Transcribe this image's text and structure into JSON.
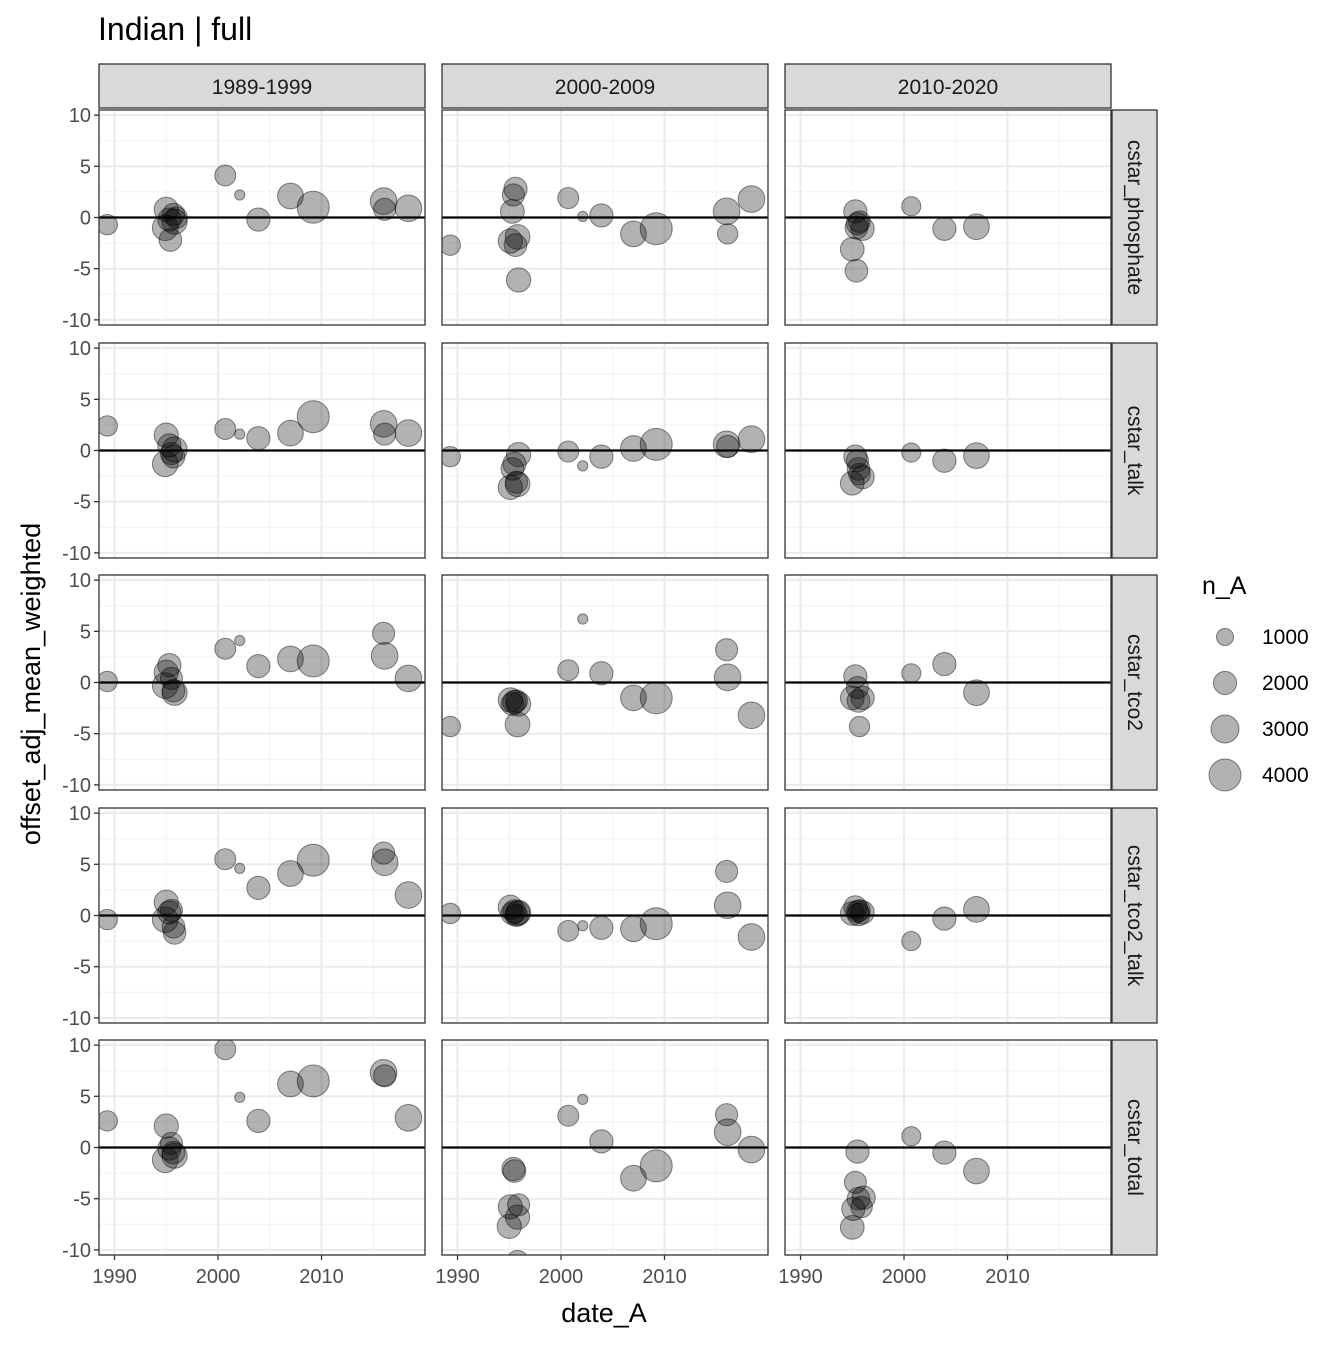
{
  "title": "Indian | full",
  "chart_data": {
    "type": "scatter",
    "title": "Indian | full",
    "xlabel": "date_A",
    "ylabel": "offset_adj_mean_weighted",
    "xlim": [
      1988.5,
      2020
    ],
    "ylim": [
      -10.5,
      10.5
    ],
    "x_ticks": [
      1990,
      2000,
      2010
    ],
    "y_ticks": [
      -10,
      -5,
      0,
      5,
      10
    ],
    "grid": true,
    "hline": 0,
    "facet_cols": [
      "1989-1999",
      "2000-2009",
      "2010-2020"
    ],
    "facet_rows": [
      "cstar_phosphate",
      "cstar_talk",
      "cstar_tco2",
      "cstar_tco2_talk",
      "cstar_total"
    ],
    "point_color": "#000000",
    "point_alpha": 0.3,
    "legend": {
      "title": "n_A",
      "position": "right",
      "sizes": [
        1000,
        2000,
        3000,
        4000
      ]
    },
    "panels": [
      {
        "row": "cstar_phosphate",
        "col": "1989-1999",
        "points": [
          [
            1989.3,
            -0.7,
            1500
          ],
          [
            1995.0,
            0.8,
            2200
          ],
          [
            1994.9,
            -1.0,
            2500
          ],
          [
            1995.3,
            -0.2,
            2000
          ],
          [
            1995.7,
            0.3,
            1800
          ],
          [
            1995.4,
            -2.2,
            1900
          ],
          [
            1995.8,
            -0.4,
            2400
          ],
          [
            1996.0,
            0.0,
            1700
          ],
          [
            2000.7,
            4.1,
            1600
          ],
          [
            2002.1,
            2.2,
            300
          ],
          [
            2003.9,
            -0.2,
            2000
          ],
          [
            2007.0,
            2.1,
            2500
          ],
          [
            2009.2,
            1.0,
            4000
          ],
          [
            2016.0,
            1.6,
            2700
          ],
          [
            2016.1,
            0.8,
            1800
          ],
          [
            2018.4,
            0.9,
            2700
          ]
        ]
      },
      {
        "row": "cstar_phosphate",
        "col": "2000-2009",
        "points": [
          [
            1989.3,
            -2.7,
            1500
          ],
          [
            1995.1,
            -2.3,
            2200
          ],
          [
            1995.4,
            2.2,
            1800
          ],
          [
            1995.6,
            2.8,
            2000
          ],
          [
            1995.3,
            0.6,
            2100
          ],
          [
            1995.8,
            -1.9,
            2300
          ],
          [
            1995.6,
            -2.7,
            1900
          ],
          [
            1995.9,
            -6.1,
            2200
          ],
          [
            2000.7,
            1.9,
            1600
          ],
          [
            2002.1,
            0.1,
            300
          ],
          [
            2003.9,
            0.2,
            2000
          ],
          [
            2007.0,
            -1.6,
            2500
          ],
          [
            2009.2,
            -1.1,
            4000
          ],
          [
            2016.0,
            0.6,
            2700
          ],
          [
            2016.1,
            -1.6,
            1500
          ],
          [
            2018.4,
            1.8,
            2700
          ]
        ]
      },
      {
        "row": "cstar_phosphate",
        "col": "2010-2020",
        "points": [
          [
            1995.0,
            -3.1,
            2100
          ],
          [
            1995.3,
            0.6,
            2000
          ],
          [
            1995.5,
            -0.6,
            1800
          ],
          [
            1995.4,
            -1.0,
            1900
          ],
          [
            1995.7,
            -0.4,
            1700
          ],
          [
            1996.0,
            -1.1,
            2000
          ],
          [
            1995.4,
            -5.2,
            1900
          ],
          [
            2000.7,
            1.1,
            1300
          ],
          [
            2003.9,
            -1.1,
            2000
          ],
          [
            2007.0,
            -0.9,
            2500
          ]
        ]
      },
      {
        "row": "cstar_talk",
        "col": "1989-1999",
        "points": [
          [
            1989.3,
            2.4,
            1500
          ],
          [
            1995.0,
            1.5,
            2200
          ],
          [
            1994.9,
            -1.3,
            2500
          ],
          [
            1995.3,
            0.5,
            2000
          ],
          [
            1995.5,
            -0.3,
            1800
          ],
          [
            1995.7,
            -0.6,
            1900
          ],
          [
            1995.8,
            0.1,
            2400
          ],
          [
            2000.7,
            2.1,
            1600
          ],
          [
            2002.1,
            1.6,
            300
          ],
          [
            2003.9,
            1.2,
            2000
          ],
          [
            2007.0,
            1.7,
            2500
          ],
          [
            2009.2,
            3.3,
            4000
          ],
          [
            2016.0,
            2.6,
            2700
          ],
          [
            2016.1,
            1.6,
            1800
          ],
          [
            2018.4,
            1.7,
            2700
          ]
        ]
      },
      {
        "row": "cstar_talk",
        "col": "2000-2009",
        "points": [
          [
            1989.3,
            -0.6,
            1500
          ],
          [
            1995.1,
            -3.6,
            2200
          ],
          [
            1995.3,
            -1.8,
            1900
          ],
          [
            1995.5,
            -1.3,
            2000
          ],
          [
            1995.7,
            -3.1,
            1800
          ],
          [
            1995.9,
            -0.4,
            2200
          ],
          [
            1995.8,
            -3.3,
            2300
          ],
          [
            2000.7,
            -0.1,
            1600
          ],
          [
            2002.1,
            -1.5,
            300
          ],
          [
            2003.9,
            -0.6,
            2000
          ],
          [
            2007.0,
            0.2,
            2500
          ],
          [
            2009.2,
            0.6,
            4000
          ],
          [
            2016.0,
            0.6,
            2700
          ],
          [
            2016.1,
            0.4,
            1800
          ],
          [
            2018.4,
            1.1,
            2700
          ]
        ]
      },
      {
        "row": "cstar_talk",
        "col": "2010-2020",
        "points": [
          [
            1995.0,
            -3.2,
            2100
          ],
          [
            1995.3,
            -0.6,
            2000
          ],
          [
            1995.5,
            -1.0,
            1800
          ],
          [
            1995.6,
            -1.8,
            1900
          ],
          [
            1995.7,
            -2.3,
            1700
          ],
          [
            1996.0,
            -2.6,
            2000
          ],
          [
            2000.7,
            -0.2,
            1300
          ],
          [
            2003.9,
            -1.0,
            2000
          ],
          [
            2007.0,
            -0.5,
            2500
          ]
        ]
      },
      {
        "row": "cstar_tco2",
        "col": "1989-1999",
        "points": [
          [
            1989.3,
            0.1,
            1500
          ],
          [
            1995.0,
            1.0,
            2200
          ],
          [
            1994.9,
            -0.3,
            2500
          ],
          [
            1995.3,
            1.7,
            2000
          ],
          [
            1995.5,
            0.4,
            1800
          ],
          [
            1995.7,
            -0.8,
            1900
          ],
          [
            1995.8,
            -1.0,
            2400
          ],
          [
            2000.7,
            3.3,
            1600
          ],
          [
            2002.1,
            4.1,
            300
          ],
          [
            2003.9,
            1.6,
            2000
          ],
          [
            2007.0,
            2.3,
            2500
          ],
          [
            2009.2,
            2.1,
            4000
          ],
          [
            2016.0,
            4.8,
            1800
          ],
          [
            2016.1,
            2.6,
            2700
          ],
          [
            2018.4,
            0.4,
            2700
          ]
        ]
      },
      {
        "row": "cstar_tco2",
        "col": "2000-2009",
        "points": [
          [
            1989.3,
            -4.3,
            1500
          ],
          [
            1995.1,
            -1.7,
            2200
          ],
          [
            1995.3,
            -2.1,
            1900
          ],
          [
            1995.5,
            -1.9,
            2000
          ],
          [
            1995.7,
            -1.8,
            1800
          ],
          [
            1995.9,
            -2.1,
            2200
          ],
          [
            1995.8,
            -4.1,
            2300
          ],
          [
            2000.7,
            1.2,
            1600
          ],
          [
            2002.1,
            6.2,
            300
          ],
          [
            2003.9,
            0.9,
            2000
          ],
          [
            2007.0,
            -1.5,
            2500
          ],
          [
            2009.2,
            -1.5,
            4000
          ],
          [
            2016.0,
            3.2,
            1800
          ],
          [
            2016.1,
            0.5,
            2700
          ],
          [
            2018.4,
            -3.2,
            2700
          ]
        ]
      },
      {
        "row": "cstar_tco2",
        "col": "2010-2020",
        "points": [
          [
            1995.0,
            -1.5,
            2100
          ],
          [
            1995.3,
            0.6,
            2000
          ],
          [
            1995.5,
            -0.5,
            1800
          ],
          [
            1995.6,
            -1.8,
            1900
          ],
          [
            1995.7,
            -4.3,
            1500
          ],
          [
            1996.0,
            -1.5,
            2000
          ],
          [
            2000.7,
            0.9,
            1300
          ],
          [
            2003.9,
            1.8,
            2000
          ],
          [
            2007.0,
            -1.0,
            2500
          ]
        ]
      },
      {
        "row": "cstar_tco2_talk",
        "col": "1989-1999",
        "points": [
          [
            1989.3,
            -0.4,
            1500
          ],
          [
            1995.0,
            1.3,
            2200
          ],
          [
            1994.9,
            -0.4,
            2500
          ],
          [
            1995.3,
            0.3,
            2000
          ],
          [
            1995.5,
            0.5,
            1800
          ],
          [
            1995.7,
            -1.1,
            1900
          ],
          [
            1995.8,
            -1.7,
            1900
          ],
          [
            2000.7,
            5.5,
            1600
          ],
          [
            2002.1,
            4.6,
            300
          ],
          [
            2003.9,
            2.7,
            2000
          ],
          [
            2007.0,
            4.1,
            2500
          ],
          [
            2009.2,
            5.4,
            4000
          ],
          [
            2016.0,
            6.1,
            1800
          ],
          [
            2016.1,
            5.2,
            2700
          ],
          [
            2018.4,
            2.0,
            2700
          ]
        ]
      },
      {
        "row": "cstar_tco2_talk",
        "col": "2000-2009",
        "points": [
          [
            1989.3,
            0.2,
            1500
          ],
          [
            1995.1,
            0.8,
            2200
          ],
          [
            1995.3,
            0.2,
            1900
          ],
          [
            1995.5,
            0.4,
            2000
          ],
          [
            1995.7,
            0.0,
            1800
          ],
          [
            1995.9,
            0.3,
            2200
          ],
          [
            1995.8,
            0.2,
            2300
          ],
          [
            2000.7,
            -1.5,
            1600
          ],
          [
            2002.1,
            -1.0,
            300
          ],
          [
            2003.9,
            -1.2,
            2000
          ],
          [
            2007.0,
            -1.3,
            2500
          ],
          [
            2009.2,
            -0.8,
            4000
          ],
          [
            2016.0,
            4.3,
            1800
          ],
          [
            2016.1,
            1.0,
            2700
          ],
          [
            2018.4,
            -2.1,
            2700
          ]
        ]
      },
      {
        "row": "cstar_tco2_talk",
        "col": "2010-2020",
        "points": [
          [
            1995.0,
            0.2,
            2100
          ],
          [
            1995.3,
            0.8,
            2000
          ],
          [
            1995.5,
            0.4,
            1800
          ],
          [
            1995.6,
            0.1,
            1900
          ],
          [
            1995.7,
            0.5,
            1700
          ],
          [
            1996.0,
            0.3,
            2000
          ],
          [
            2000.7,
            -2.5,
            1300
          ],
          [
            2003.9,
            -0.3,
            2000
          ],
          [
            2007.0,
            0.6,
            2500
          ]
        ]
      },
      {
        "row": "cstar_total",
        "col": "1989-1999",
        "points": [
          [
            1989.3,
            2.6,
            1500
          ],
          [
            1995.0,
            2.1,
            2200
          ],
          [
            1994.9,
            -1.2,
            2500
          ],
          [
            1995.3,
            -0.1,
            2000
          ],
          [
            1995.5,
            0.4,
            1800
          ],
          [
            1995.7,
            -0.5,
            1900
          ],
          [
            1995.8,
            -0.8,
            2400
          ],
          [
            2000.7,
            9.6,
            1600
          ],
          [
            2002.1,
            4.9,
            300
          ],
          [
            2003.9,
            2.6,
            2000
          ],
          [
            2007.0,
            6.2,
            2500
          ],
          [
            2009.2,
            6.5,
            4000
          ],
          [
            2016.0,
            7.3,
            2700
          ],
          [
            2016.1,
            7.0,
            1800
          ],
          [
            2018.4,
            2.9,
            2700
          ]
        ]
      },
      {
        "row": "cstar_total",
        "col": "2000-2009",
        "points": [
          [
            1995.1,
            -5.8,
            2200
          ],
          [
            1995.0,
            -7.7,
            2200
          ],
          [
            1995.4,
            -2.1,
            2000
          ],
          [
            1995.5,
            -2.3,
            1900
          ],
          [
            1995.8,
            -6.8,
            2200
          ],
          [
            1995.9,
            -5.6,
            1800
          ],
          [
            1995.8,
            -11.2,
            2000
          ],
          [
            2000.7,
            3.1,
            1600
          ],
          [
            2002.1,
            4.7,
            300
          ],
          [
            2003.9,
            0.6,
            2000
          ],
          [
            2007.0,
            -3.0,
            2500
          ],
          [
            2009.2,
            -1.8,
            4000
          ],
          [
            2016.0,
            3.2,
            1800
          ],
          [
            2016.1,
            1.5,
            2700
          ],
          [
            2018.4,
            -0.2,
            2700
          ]
        ]
      },
      {
        "row": "cstar_total",
        "col": "2010-2020",
        "points": [
          [
            1995.0,
            -7.8,
            2100
          ],
          [
            1995.1,
            -6.0,
            2000
          ],
          [
            1995.3,
            -3.4,
            1800
          ],
          [
            1995.5,
            -0.4,
            2000
          ],
          [
            1995.6,
            -5.0,
            1900
          ],
          [
            1995.9,
            -5.8,
            1700
          ],
          [
            1996.1,
            -4.9,
            2000
          ],
          [
            2000.7,
            1.1,
            1300
          ],
          [
            2003.9,
            -0.5,
            2000
          ],
          [
            2007.0,
            -2.3,
            2500
          ]
        ]
      }
    ]
  }
}
